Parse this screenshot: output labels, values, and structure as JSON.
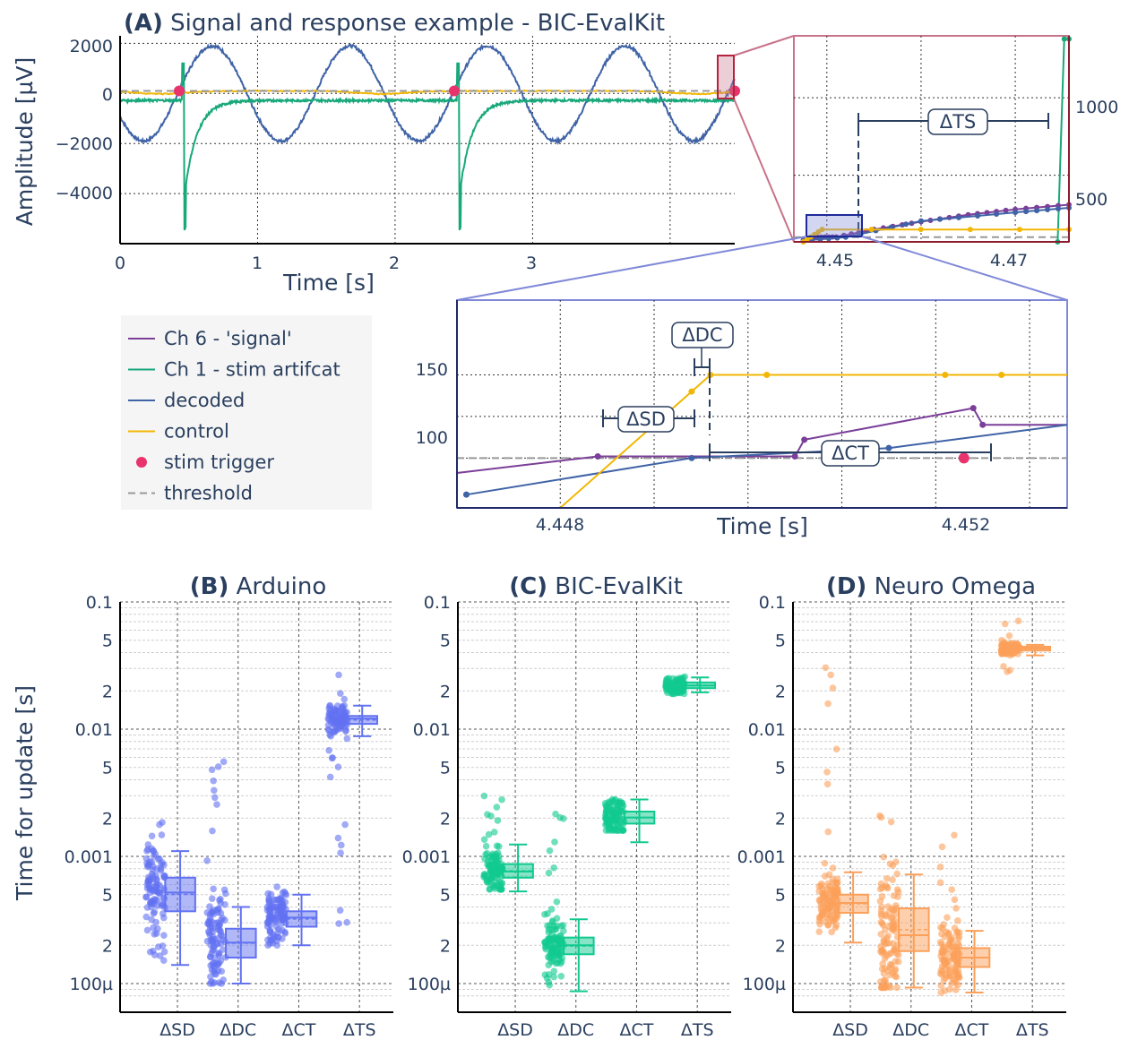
{
  "colors": {
    "signal": "#7b3f99",
    "stim": "#18a87a",
    "decoded": "#3f63a6",
    "control": "#f2b705",
    "trigger": "#e8336d",
    "threshold": "#999999",
    "text": "#2a3f5f",
    "zoom1": "#c8738a",
    "zoom2": "#7f89d8",
    "arduino": "#6272f2",
    "evalkit": "#10c98f",
    "neuro": "#fca05a"
  },
  "panel_a": {
    "label": "(A)",
    "title": "Signal and response example - BIC-EvalKit",
    "ylabel": "Amplitude [µV]",
    "xlabel": "Time [s]",
    "yticks": [
      "2000",
      "0",
      "−2000",
      "−4000"
    ],
    "xticks": [
      "0",
      "1",
      "2",
      "3"
    ]
  },
  "zoom1": {
    "yticks": [
      "1000",
      "500"
    ],
    "xticks": [
      "4.45",
      "4.47"
    ],
    "annotation": "ΔTS"
  },
  "zoom2": {
    "yticks": [
      "150",
      "100"
    ],
    "xticks": [
      "4.448",
      "4.452"
    ],
    "xlabel": "Time [s]",
    "annotations": {
      "dc": "ΔDC",
      "sd": "ΔSD",
      "ct": "ΔCT"
    }
  },
  "legend": [
    {
      "label": "Ch 6 - 'signal'",
      "kind": "line",
      "color_key": "signal"
    },
    {
      "label": "Ch 1 - stim artifcat",
      "kind": "line",
      "color_key": "stim"
    },
    {
      "label": "decoded",
      "kind": "line",
      "color_key": "decoded"
    },
    {
      "label": "control",
      "kind": "line",
      "color_key": "control"
    },
    {
      "label": "stim trigger",
      "kind": "marker",
      "color_key": "trigger"
    },
    {
      "label": "threshold",
      "kind": "dash",
      "color_key": "threshold"
    }
  ],
  "box_ylabel": "Time for update [s]",
  "box_yticks": [
    "0.1",
    "5",
    "2",
    "0.01",
    "5",
    "2",
    "0.001",
    "5",
    "2",
    "100µ"
  ],
  "chart_data": [
    {
      "type": "line",
      "title": "Signal and response example - BIC-EvalKit",
      "xlabel": "Time [s]",
      "ylabel": "Amplitude [µV]",
      "xlim": [
        0,
        4.47
      ],
      "ylim": [
        -6000,
        2300
      ],
      "series": [
        {
          "name": "decoded",
          "period_s": 1.0,
          "amplitude_uV": 1900,
          "offset_uV": 0,
          "first_peak_s": 0.67
        },
        {
          "name": "Ch 1 - stim artifcat",
          "baseline_uV": -280,
          "artifact_times_s": [
            0.45,
            2.45
          ],
          "artifact_peak_uV": 1200,
          "artifact_trough_uV": -5500
        },
        {
          "name": "control",
          "baseline_uV": 100,
          "dips_s": [
            0.3,
            1.9,
            4.2
          ]
        },
        {
          "name": "stim trigger",
          "x": [
            0.43,
            2.43,
            4.47
          ],
          "y": [
            100,
            100,
            100
          ]
        },
        {
          "name": "threshold",
          "y": 100
        }
      ]
    },
    {
      "type": "line",
      "xlim": [
        4.4465,
        4.4757
      ],
      "ylim": [
        70,
        1400
      ],
      "annotation": "ΔTS",
      "series": [
        {
          "name": "Ch 1 - stim artifcat",
          "x": [
            4.4745,
            4.4752,
            4.4757
          ],
          "y": [
            70,
            1380,
            1380
          ]
        },
        {
          "name": "Ch 6 - 'signal'",
          "x": [
            4.4475,
            4.449,
            4.451,
            4.455,
            4.46,
            4.465,
            4.47,
            4.4757
          ],
          "y": [
            80,
            100,
            102,
            150,
            200,
            245,
            280,
            310
          ]
        },
        {
          "name": "decoded",
          "x": [
            4.4475,
            4.452,
            4.46,
            4.47,
            4.4757
          ],
          "y": [
            78,
            100,
            205,
            260,
            290
          ]
        },
        {
          "name": "control",
          "x": [
            4.4475,
            4.4495,
            4.4757
          ],
          "y": [
            70,
            150,
            150
          ]
        },
        {
          "name": "threshold",
          "y": 100
        }
      ]
    },
    {
      "type": "line",
      "xlabel": "Time [s]",
      "xlim": [
        4.4469,
        4.4534
      ],
      "ylim": [
        70,
        195
      ],
      "annotations": [
        "ΔSD",
        "ΔDC",
        "ΔCT"
      ],
      "series": [
        {
          "name": "Ch 6 - 'signal'",
          "x": [
            4.4469,
            4.4484,
            4.4505,
            4.4506,
            4.4524,
            4.4525,
            4.4534
          ],
          "y": [
            91,
            101,
            101,
            111,
            130,
            120,
            120
          ]
        },
        {
          "name": "decoded",
          "x": [
            4.447,
            4.4494,
            4.4515,
            4.4534
          ],
          "y": [
            78,
            100,
            106,
            120
          ]
        },
        {
          "name": "control",
          "x": [
            4.448,
            4.4494,
            4.4496,
            4.4502,
            4.4521,
            4.4527,
            4.4534
          ],
          "y": [
            70,
            140,
            150,
            150,
            150,
            150,
            150
          ]
        },
        {
          "name": "stim trigger",
          "x": [
            4.4523
          ],
          "y": [
            100
          ]
        },
        {
          "name": "threshold",
          "y": 100
        }
      ]
    },
    {
      "type": "box",
      "title": "(B) Arduino",
      "ylabel": "Time for update [s]",
      "yscale": "log",
      "categories": [
        "ΔSD",
        "ΔDC",
        "ΔCT",
        "ΔTS"
      ],
      "boxes": [
        {
          "category": "ΔSD",
          "min": 0.00014,
          "q1": 0.00037,
          "median": 0.00052,
          "q3": 0.00068,
          "max": 0.0011,
          "points_range": [
            0.00014,
            0.003
          ]
        },
        {
          "category": "ΔDC",
          "min": 0.0001,
          "q1": 0.00016,
          "median": 0.00021,
          "q3": 0.00027,
          "max": 0.0004,
          "points_range": [
            0.0001,
            0.0069
          ]
        },
        {
          "category": "ΔCT",
          "min": 0.0002,
          "q1": 0.00028,
          "median": 0.00033,
          "q3": 0.00037,
          "max": 0.0005,
          "points_range": [
            0.0002,
            0.0006
          ]
        },
        {
          "category": "ΔTS",
          "min": 0.0088,
          "q1": 0.011,
          "median": 0.0121,
          "q3": 0.0127,
          "max": 0.0153,
          "points_range": [
            0.00027,
            0.027
          ]
        }
      ]
    },
    {
      "type": "box",
      "title": "(C) BIC-EvalKit",
      "yscale": "log",
      "categories": [
        "ΔSD",
        "ΔDC",
        "ΔCT",
        "ΔTS"
      ],
      "boxes": [
        {
          "category": "ΔSD",
          "min": 0.00053,
          "q1": 0.00068,
          "median": 0.00076,
          "q3": 0.00087,
          "max": 0.00124,
          "points_range": [
            0.00055,
            0.003
          ]
        },
        {
          "category": "ΔDC",
          "min": 8.7e-05,
          "q1": 0.00017,
          "median": 0.0002,
          "q3": 0.00023,
          "max": 0.00032,
          "points_range": [
            8.7e-05,
            0.0023
          ]
        },
        {
          "category": "ΔCT",
          "min": 0.00129,
          "q1": 0.00181,
          "median": 0.00202,
          "q3": 0.00225,
          "max": 0.0028,
          "points_range": [
            0.0016,
            0.0028
          ]
        },
        {
          "category": "ΔTS",
          "min": 0.0195,
          "q1": 0.021,
          "median": 0.022,
          "q3": 0.0233,
          "max": 0.0255,
          "points_range": [
            0.019,
            0.026
          ]
        }
      ]
    },
    {
      "type": "box",
      "title": "(D) Neuro Omega",
      "yscale": "log",
      "categories": [
        "ΔSD",
        "ΔDC",
        "ΔCT",
        "ΔTS"
      ],
      "boxes": [
        {
          "category": "ΔSD",
          "min": 0.00021,
          "q1": 0.00036,
          "median": 0.00043,
          "q3": 0.0005,
          "max": 0.00075,
          "points_range": [
            0.00021,
            0.032
          ]
        },
        {
          "category": "ΔDC",
          "min": 9.3e-05,
          "q1": 0.00018,
          "median": 0.00024,
          "q3": 0.00039,
          "max": 0.00072,
          "points_range": [
            9.3e-05,
            0.0021
          ]
        },
        {
          "category": "ΔCT",
          "min": 8.5e-05,
          "q1": 0.000135,
          "median": 0.00016,
          "q3": 0.00019,
          "max": 0.00026,
          "points_range": [
            8.5e-05,
            0.0016
          ]
        },
        {
          "category": "ΔTS",
          "min": 0.038,
          "q1": 0.0415,
          "median": 0.043,
          "q3": 0.0445,
          "max": 0.046,
          "points_range": [
            0.028,
            0.072
          ]
        }
      ]
    }
  ]
}
